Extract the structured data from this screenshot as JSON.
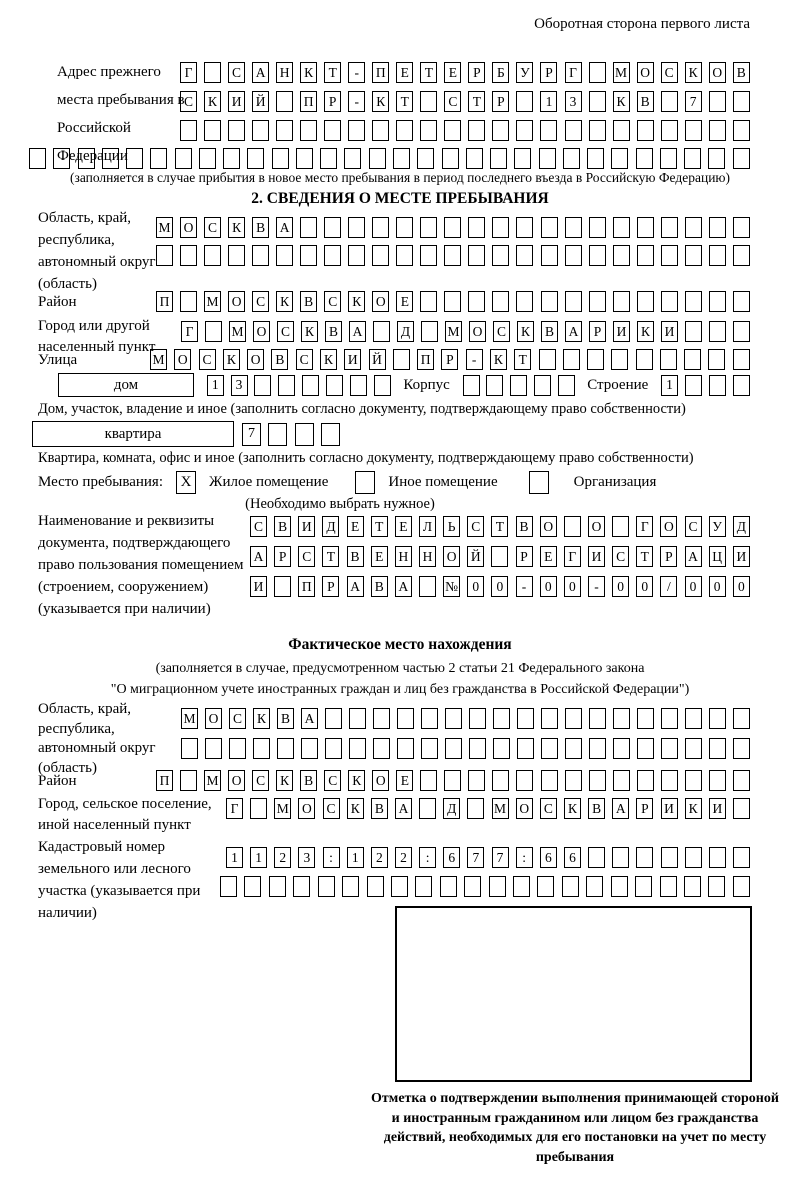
{
  "page": {
    "side_note": "Оборотная сторона первого листа",
    "ink_color": "#000000",
    "paper_color": "#ffffff"
  },
  "prev_address": {
    "label": "Адрес прежнего места пребывания в Российской Федерации",
    "row1": {
      "text": "Г САНКТ-ПЕТЕРБУРГ МОСКОВ",
      "len": 24
    },
    "row2": {
      "text": "СКИЙ ПР-КТ СТР 13 КВ 7",
      "len": 24
    },
    "row3": {
      "text": "",
      "len": 24
    },
    "row4": {
      "text": "",
      "len": 30
    },
    "note": "(заполняется в случае прибытия в новое место пребывания в период последнего въезда в Российскую Федерацию)"
  },
  "section2": {
    "title": "2. СВЕДЕНИЯ О МЕСТЕ ПРЕБЫВАНИЯ",
    "region_label": "Область, край, республика, автономный округ (область)",
    "region_row1": {
      "text": "МОСКВА",
      "len": 25
    },
    "region_row2": {
      "text": "",
      "len": 25
    },
    "district_label": "Район",
    "district_row": {
      "text": "П МОСКВСКОЕ",
      "len": 25
    },
    "city_label": "Город или другой населенный пункт",
    "city_row": {
      "text": "Г МОСКВА Д МОСКВАРИКИ",
      "len": 24
    },
    "street_label": "Улица",
    "street_row": {
      "text": "МОСКОВСКИЙ ПР-КТ",
      "len": 25
    },
    "house_box_label": "дом",
    "house_row": {
      "text": "13",
      "len": 8
    },
    "korpus_label": "Корпус",
    "korpus_row": {
      "text": "",
      "len": 5
    },
    "stroenie_label": "Строение",
    "stroenie_row": {
      "text": "1",
      "len": 4
    },
    "house_note": "Дом, участок, владение и иное (заполнить согласно документу, подтверждающему право собственности)",
    "apartment_box_label": "квартира",
    "apartment_row": {
      "text": "7",
      "len": 4
    },
    "apartment_note": "Квартира, комната, офис и иное (заполнить согласно документу, подтверждающему право собственности)",
    "stay_label": "Место пребывания:",
    "stay_options": [
      {
        "mark": "X",
        "label": "Жилое помещение"
      },
      {
        "mark": "",
        "label": "Иное помещение"
      },
      {
        "mark": "",
        "label": "Организация"
      }
    ],
    "stay_note": "(Необходимо выбрать нужное)",
    "doc_label": "Наименование и реквизиты документа, подтверждающего право пользования помещением (строением, сооружением) (указывается при наличии)",
    "doc_row1": {
      "text": "СВИДЕТЕЛЬСТВО О ГОСУД",
      "len": 21
    },
    "doc_row2": {
      "text": "АРСТВЕННОЙ РЕГИСТРАЦИ",
      "len": 21
    },
    "doc_row3": {
      "text": "И ПРАВА №00-00-00/000",
      "len": 21
    }
  },
  "actual": {
    "title": "Фактическое место нахождения",
    "note1": "(заполняется в случае, предусмотренном частью 2 статьи 21 Федерального закона",
    "note2": "\"О миграционном учете иностранных граждан и лиц без гражданства в Российской Федерации\")",
    "region_label": "Область, край, республика, автономный округ (область)",
    "region_row1": {
      "text": "МОСКВА",
      "len": 24
    },
    "region_row2": {
      "text": "",
      "len": 24
    },
    "district_label": "Район",
    "district_row": {
      "text": "П МОСКВСКОЕ",
      "len": 25
    },
    "city_label": "Город, сельское поселение, иной населенный пункт",
    "city_row": {
      "text": "Г МОСКВА Д МОСКВАРИКИ",
      "len": 22
    },
    "cadastral_label": "Кадастровый номер земельного или лесного участка (указывается при наличии)",
    "cadastral_row1": {
      "text": "1123:122:677:66",
      "len": 22
    },
    "cadastral_row2": {
      "text": "",
      "len": 22
    },
    "stamp_note": "Отметка о подтверждении выполнения принимающей стороной и иностранным гражданином или лицом без гражданства действий, необходимых для его постановки на учет по месту пребывания"
  }
}
